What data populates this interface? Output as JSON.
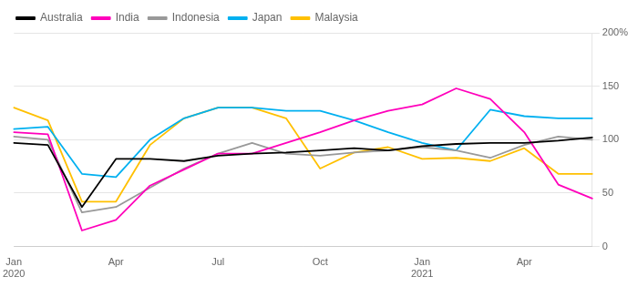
{
  "chart_data": {
    "type": "line",
    "categories": [
      "Jan\n2020",
      null,
      null,
      "Apr",
      null,
      null,
      "Jul",
      null,
      null,
      "Oct",
      null,
      null,
      "Jan\n2021",
      null,
      null,
      "Apr",
      null,
      null
    ],
    "series": [
      {
        "name": "Australia",
        "color": "#000000",
        "values": [
          97,
          95,
          37,
          82,
          82,
          80,
          85,
          87,
          88,
          90,
          92,
          90,
          94,
          96,
          97,
          97,
          99,
          102
        ]
      },
      {
        "name": "India",
        "color": "#ff00bb",
        "values": [
          107,
          105,
          15,
          25,
          57,
          72,
          87,
          87,
          97,
          107,
          118,
          127,
          133,
          148,
          138,
          107,
          58,
          45
        ]
      },
      {
        "name": "Indonesia",
        "color": "#999999",
        "values": [
          103,
          100,
          32,
          37,
          55,
          73,
          87,
          97,
          87,
          85,
          88,
          90,
          93,
          90,
          83,
          95,
          103,
          100
        ]
      },
      {
        "name": "Japan",
        "color": "#00b0f0",
        "values": [
          110,
          112,
          68,
          65,
          100,
          120,
          130,
          130,
          127,
          127,
          118,
          107,
          97,
          90,
          128,
          122,
          120,
          120
        ]
      },
      {
        "name": "Malaysia",
        "color": "#ffc000",
        "values": [
          130,
          118,
          42,
          42,
          95,
          120,
          130,
          130,
          120,
          73,
          88,
          93,
          82,
          83,
          80,
          92,
          68,
          68
        ]
      }
    ],
    "ylim": [
      0,
      200
    ],
    "yticks": [
      0,
      50,
      100,
      150,
      {
        "value": 200,
        "label": "200%"
      }
    ],
    "grid": "y",
    "legend": "top"
  }
}
